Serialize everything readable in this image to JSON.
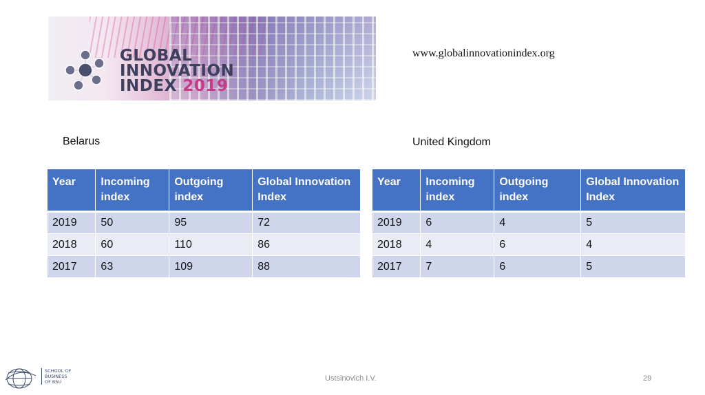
{
  "banner": {
    "title_line1": "GLOBAL",
    "title_line2": "INNOVATION",
    "title_line3_prefix": "INDEX",
    "title_line3_year": "2019"
  },
  "url": "www.globalinnovationindex.org",
  "belarus": {
    "country": "Belarus",
    "headers": [
      "Year",
      "Incoming index",
      "Outgoing index",
      "Global Innovation Index"
    ],
    "rows": [
      [
        "2019",
        "50",
        "95",
        "72"
      ],
      [
        "2018",
        "60",
        "110",
        "86"
      ],
      [
        "2017",
        "63",
        "109",
        "88"
      ]
    ]
  },
  "uk": {
    "country": "United Kingdom",
    "headers": [
      "Year",
      "Incoming index",
      "Outgoing index",
      "Global Innovation Index"
    ],
    "rows": [
      [
        "2019",
        "6",
        "4",
        "5"
      ],
      [
        "2018",
        "4",
        "6",
        "4"
      ],
      [
        "2017",
        "7",
        "6",
        "5"
      ]
    ]
  },
  "footer": {
    "logo_line1": "SCHOOL OF",
    "logo_line2": "BUSINESS",
    "logo_line3": "OF BSU",
    "author": "Ustsinovich I.V.",
    "page": "29"
  },
  "colors": {
    "table_header": "#4472c4",
    "row_odd": "#cfd5ea",
    "row_even": "#e9ebf5",
    "logo_year": "#c63a86"
  }
}
